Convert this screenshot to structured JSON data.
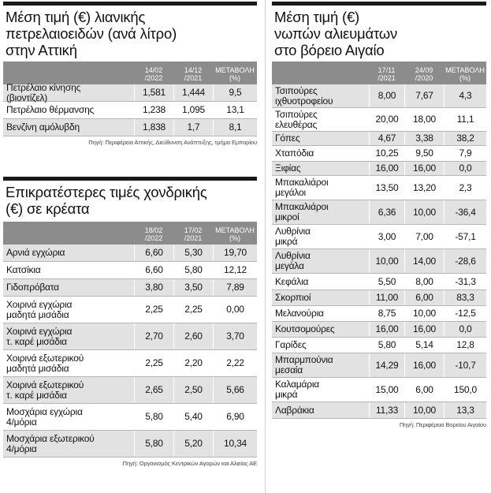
{
  "fuel": {
    "title_line1": "Μέση τιμή (€) λιανικής",
    "title_line2": "πετρελαιοειδών (ανά λίτρο)",
    "title_line3": "στην Αττική",
    "headers": [
      "14/02 /2022",
      "14/12 /2021",
      "ΜΕΤΑΒΟΛΗ (%)"
    ],
    "rows": [
      {
        "name": [
          "Πετρέλαιο κίνησης",
          "(βιοντίζελ)"
        ],
        "v": [
          "1,581",
          "1,444",
          "9,5"
        ]
      },
      {
        "name": [
          "Πετρέλαιο θέρμανσης"
        ],
        "v": [
          "1,238",
          "1,095",
          "13,1"
        ]
      },
      {
        "name": [
          "Βενζίνη αμόλυβδη"
        ],
        "v": [
          "1,838",
          "1,7",
          "8,1"
        ]
      }
    ],
    "source": "Πηγή: Περιφέρεια Αττικής, Διεύθυνση Ανάπτυξης, τμήμα Εμπορίου"
  },
  "meat": {
    "title_line1": "Επικρατέστερες τιμές χονδρικής",
    "title_line2": "(€) σε κρέατα",
    "headers": [
      "18/02 /2022",
      "17/02 /2021",
      "ΜΕΤΑΒΟΛΗ (%)"
    ],
    "rows": [
      {
        "name": [
          "Αρνιά εγχώρια"
        ],
        "v": [
          "6,60",
          "5,30",
          "19,70"
        ]
      },
      {
        "name": [
          "Κατσίκια"
        ],
        "v": [
          "6,60",
          "5,80",
          "12,12"
        ]
      },
      {
        "name": [
          "Γιδοπρόβατα"
        ],
        "v": [
          "3,80",
          "3,50",
          "7,89"
        ]
      },
      {
        "name": [
          "Χοιρινά εγχώρια",
          "μαδητά μισάδια"
        ],
        "v": [
          "2,25",
          "2,25",
          "0,00"
        ]
      },
      {
        "name": [
          "Χοιρινά εγχώρια",
          "τ. καρέ μισάδια"
        ],
        "v": [
          "2,70",
          "2,60",
          "3,70"
        ]
      },
      {
        "name": [
          "Χοιρινά εξωτερικού",
          "μαδητά μισάδια"
        ],
        "v": [
          "2,25",
          "2,20",
          "2,22"
        ]
      },
      {
        "name": [
          "Χοιρινά εξωτερικού",
          "τ. καρέ μισάδια"
        ],
        "v": [
          "2,65",
          "2,50",
          "5,66"
        ]
      },
      {
        "name": [
          "Μοσχάρια εγχώρια",
          "4/μόρια"
        ],
        "v": [
          "5,80",
          "5,40",
          "6,90"
        ]
      },
      {
        "name": [
          "Μοσχάρια εξωτερικού",
          "4/μόρια"
        ],
        "v": [
          "5,80",
          "5,20",
          "10,34"
        ]
      }
    ],
    "source": "Πηγή: Οργανισμός Κεντρικών Αγορών και Αλιείας ΑΕ"
  },
  "fish": {
    "title_line1": "Μέση τιμή (€)",
    "title_line2": "νωπών αλιευμάτων",
    "title_line3": "στο βόρειο Αιγαίο",
    "headers": [
      "17/11 /2021",
      "24/09 /2020",
      "ΜΕΤΑΒΟΛΗ (%)"
    ],
    "rows": [
      {
        "name": [
          "Τσιπούρες",
          "ιχθυοτροφείου"
        ],
        "v": [
          "8,00",
          "7,67",
          "4,3"
        ]
      },
      {
        "name": [
          "Τσιπούρες",
          "ελευθέρας"
        ],
        "v": [
          "20,00",
          "18,00",
          "11,1"
        ]
      },
      {
        "name": [
          "Γόπες"
        ],
        "v": [
          "4,67",
          "3,38",
          "38,2"
        ]
      },
      {
        "name": [
          "Χταπόδια"
        ],
        "v": [
          "10,25",
          "9,50",
          "7,9"
        ]
      },
      {
        "name": [
          "Ξιφίας"
        ],
        "v": [
          "16,00",
          "16,00",
          "0,0"
        ]
      },
      {
        "name": [
          "Μπακαλιάροι",
          "μεγάλοι"
        ],
        "v": [
          "13,50",
          "13,20",
          "2,3"
        ]
      },
      {
        "name": [
          "Μπακαλιάροι",
          "μικροί"
        ],
        "v": [
          "6,36",
          "10,00",
          "-36,4"
        ]
      },
      {
        "name": [
          "Λυθρίνια",
          "μικρά"
        ],
        "v": [
          "3,00",
          "7,00",
          "-57,1"
        ]
      },
      {
        "name": [
          "Λυθρίνια",
          "μεγάλα"
        ],
        "v": [
          "10,00",
          "14,00",
          "-28,6"
        ]
      },
      {
        "name": [
          "Κεφάλια"
        ],
        "v": [
          "5,50",
          "8,00",
          "-31,3"
        ]
      },
      {
        "name": [
          "Σκορπιοί"
        ],
        "v": [
          "11,00",
          "6,00",
          "83,3"
        ]
      },
      {
        "name": [
          "Μελανούρια"
        ],
        "v": [
          "8,75",
          "10,00",
          "-12,5"
        ]
      },
      {
        "name": [
          "Κουτσομούρες"
        ],
        "v": [
          "16,00",
          "16,00",
          "0,0"
        ]
      },
      {
        "name": [
          "Γαρίδες"
        ],
        "v": [
          "5,80",
          "5,14",
          "12,8"
        ]
      },
      {
        "name": [
          "Μπαρμπούνια",
          "μεσαία"
        ],
        "v": [
          "14,29",
          "16,00",
          "-10,7"
        ]
      },
      {
        "name": [
          "Καλαμάρια",
          "μικρά"
        ],
        "v": [
          "15,00",
          "6,00",
          "150,0"
        ]
      },
      {
        "name": [
          "Λαβράκια"
        ],
        "v": [
          "11,33",
          "10,00",
          "13,3"
        ]
      }
    ],
    "source": "Πηγή: Περιφέρεια Βορείου Αιγαίου"
  }
}
